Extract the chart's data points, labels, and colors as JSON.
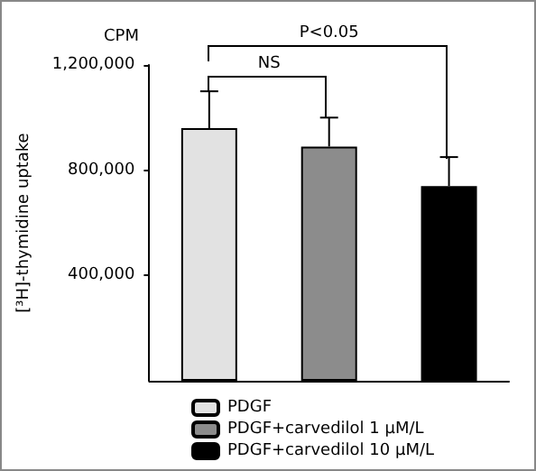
{
  "chart_data": {
    "type": "bar",
    "ylabel": "[³H]-thymidine uptake",
    "categories": [
      null,
      null,
      null
    ],
    "series": [
      {
        "name": "PDGF",
        "color": "#e2e2e2",
        "values": [
          960000,
          null,
          null
        ],
        "errors": [
          [
            960000,
            1100000
          ],
          null,
          null
        ]
      },
      {
        "name": "PDGF+carvedilol 1 μM/L",
        "color": "#8c8c8c",
        "values": [
          null,
          890000,
          null
        ],
        "errors": [
          null,
          [
            890000,
            1000000
          ],
          null
        ]
      },
      {
        "name": "PDGF+carvedilol 10 μM/L",
        "color": "#000000",
        "values": [
          null,
          null,
          740000
        ],
        "errors": [
          null,
          null,
          [
            740000,
            850000
          ]
        ]
      }
    ],
    "ylim": [
      0,
      1200000
    ],
    "yticks": [
      {
        "value": 400000,
        "label": "400,000"
      },
      {
        "value": 800000,
        "label": "800,000"
      },
      {
        "value": 1200000,
        "label": "1,200,000"
      }
    ],
    "tick_labels": "y",
    "grid": false,
    "legend": "bottom",
    "annotations": [
      "CPM",
      "NS",
      "P<0.05"
    ]
  }
}
